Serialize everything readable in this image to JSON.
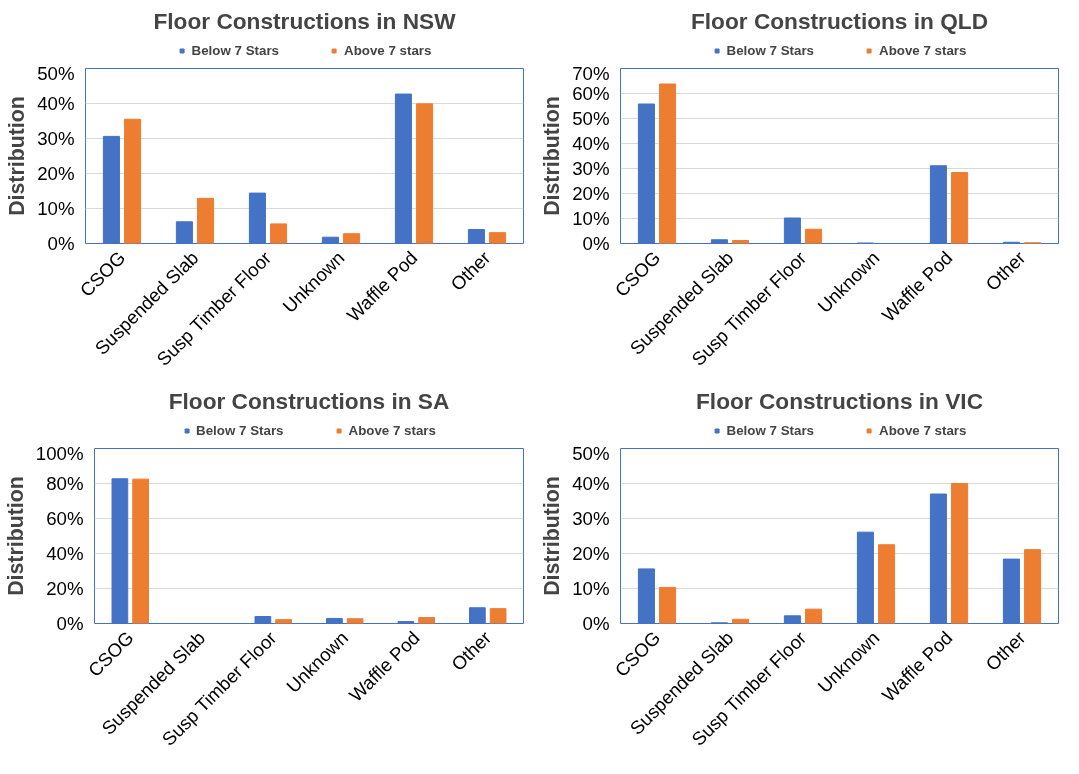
{
  "chart_data": [
    {
      "type": "bar",
      "title": "Floor Constructions in NSW",
      "ylabel": "Distribution",
      "categories": [
        "CSOG",
        "Suspended Slab",
        "Susp Timber Floor",
        "Unknown",
        "Waffle Pod",
        "Other"
      ],
      "series": [
        {
          "name": "Below 7 Stars",
          "color": "#4472c4",
          "values": [
            30.6,
            6.2,
            14.4,
            1.8,
            42.7,
            4.0
          ]
        },
        {
          "name": "Above 7 stars",
          "color": "#ed7d31",
          "values": [
            35.5,
            12.9,
            5.6,
            2.8,
            39.9,
            3.1
          ]
        }
      ],
      "ylim": [
        0,
        50
      ],
      "yticks": [
        {
          "value": 0,
          "label": "0%"
        },
        {
          "value": 10,
          "label": "10%"
        },
        {
          "value": 20,
          "label": "20%"
        },
        {
          "value": 30,
          "label": "30%"
        },
        {
          "value": 40,
          "label": "40%"
        },
        {
          "value": 50,
          "label": "50%"
        }
      ],
      "grid": "y",
      "legend": "top"
    },
    {
      "type": "bar",
      "title": "Floor Constructions in QLD",
      "ylabel": "Distribution",
      "categories": [
        "CSOG",
        "Suspended Slab",
        "Susp Timber Floor",
        "Unknown",
        "Waffle Pod",
        "Other"
      ],
      "series": [
        {
          "name": "Below 7 Stars",
          "color": "#4472c4",
          "values": [
            55.8,
            1.5,
            10.2,
            0.2,
            31.1,
            0.5
          ]
        },
        {
          "name": "Above 7 stars",
          "color": "#ed7d31",
          "values": [
            63.8,
            1.2,
            5.7,
            null,
            28.4,
            0.3
          ]
        }
      ],
      "ylim": [
        0,
        70
      ],
      "yticks": [
        {
          "value": 0,
          "label": "0%"
        },
        {
          "value": 10,
          "label": "10%"
        },
        {
          "value": 20,
          "label": "20%"
        },
        {
          "value": 30,
          "label": "30%"
        },
        {
          "value": 40,
          "label": "40%"
        },
        {
          "value": 50,
          "label": "50%"
        },
        {
          "value": 60,
          "label": "60%"
        },
        {
          "value": 70,
          "label": "70%"
        }
      ],
      "grid": "y",
      "legend": "top"
    },
    {
      "type": "bar",
      "title": "Floor Constructions in SA",
      "ylabel": "Distribution",
      "categories": [
        "CSOG",
        "Suspended Slab",
        "Susp Timber Floor",
        "Unknown",
        "Waffle Pod",
        "Other"
      ],
      "series": [
        {
          "name": "Below 7 Stars",
          "color": "#4472c4",
          "values": [
            82.7,
            null,
            4.0,
            2.9,
            1.1,
            9.0
          ]
        },
        {
          "name": "Above 7 stars",
          "color": "#ed7d31",
          "values": [
            82.5,
            null,
            2.2,
            2.7,
            3.4,
            8.5
          ]
        }
      ],
      "ylim": [
        0,
        100
      ],
      "yticks": [
        {
          "value": 0,
          "label": "0%"
        },
        {
          "value": 20,
          "label": "20%"
        },
        {
          "value": 40,
          "label": "40%"
        },
        {
          "value": 60,
          "label": "60%"
        },
        {
          "value": 80,
          "label": "80%"
        },
        {
          "value": 100,
          "label": "100%"
        }
      ],
      "grid": "y",
      "legend": "top"
    },
    {
      "type": "bar",
      "title": "Floor Constructions in VIC",
      "ylabel": "Distribution",
      "categories": [
        "CSOG",
        "Suspended Slab",
        "Susp Timber Floor",
        "Unknown",
        "Waffle Pod",
        "Other"
      ],
      "series": [
        {
          "name": "Below 7 Stars",
          "color": "#4472c4",
          "values": [
            15.6,
            0.2,
            2.2,
            26.1,
            37.0,
            18.4
          ]
        },
        {
          "name": "Above 7 stars",
          "color": "#ed7d31",
          "values": [
            10.3,
            1.2,
            4.1,
            22.5,
            40.0,
            21.1
          ]
        }
      ],
      "ylim": [
        0,
        50
      ],
      "yticks": [
        {
          "value": 0,
          "label": "0%"
        },
        {
          "value": 10,
          "label": "10%"
        },
        {
          "value": 20,
          "label": "20%"
        },
        {
          "value": 30,
          "label": "30%"
        },
        {
          "value": 40,
          "label": "40%"
        },
        {
          "value": 50,
          "label": "50%"
        }
      ],
      "grid": "y",
      "legend": "top"
    }
  ]
}
